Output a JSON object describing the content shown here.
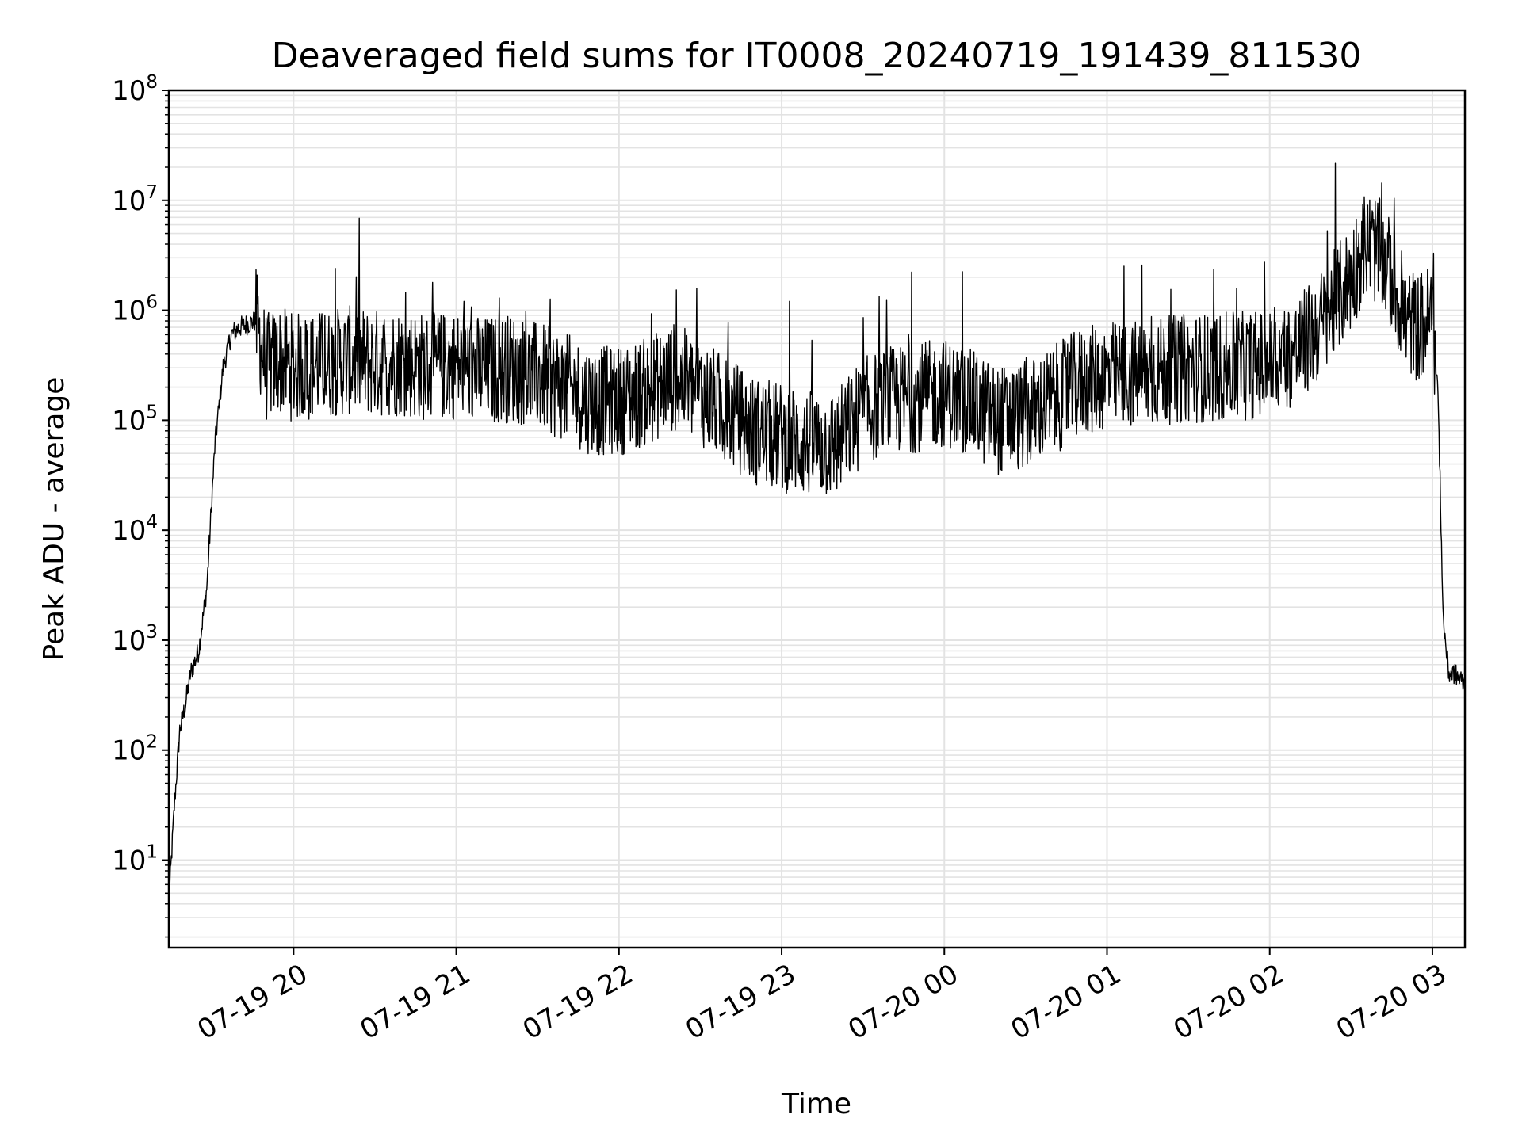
{
  "chart_data": {
    "type": "line",
    "title": "Deaveraged field sums for IT0008_20240719_191439_811530",
    "xlabel": "Time",
    "ylabel": "Peak ADU - average",
    "yscale": "log",
    "ylim": [
      1.6,
      100000000
    ],
    "y_ticks": [
      {
        "base": "10",
        "exp": "1",
        "value": 10
      },
      {
        "base": "10",
        "exp": "2",
        "value": 100
      },
      {
        "base": "10",
        "exp": "3",
        "value": 1000
      },
      {
        "base": "10",
        "exp": "4",
        "value": 10000
      },
      {
        "base": "10",
        "exp": "5",
        "value": 100000
      },
      {
        "base": "10",
        "exp": "6",
        "value": 1000000
      },
      {
        "base": "10",
        "exp": "7",
        "value": 10000000
      },
      {
        "base": "10",
        "exp": "8",
        "value": 100000000
      }
    ],
    "xlim": [
      "2024-07-19 19:14",
      "2024-07-20 03:12"
    ],
    "x_ticks": [
      {
        "label": "07-19 20",
        "time": "2024-07-19 20:00"
      },
      {
        "label": "07-19 21",
        "time": "2024-07-19 21:00"
      },
      {
        "label": "07-19 22",
        "time": "2024-07-19 22:00"
      },
      {
        "label": "07-19 23",
        "time": "2024-07-19 23:00"
      },
      {
        "label": "07-20 00",
        "time": "2024-07-20 00:00"
      },
      {
        "label": "07-20 01",
        "time": "2024-07-20 01:00"
      },
      {
        "label": "07-20 02",
        "time": "2024-07-20 02:00"
      },
      {
        "label": "07-20 03",
        "time": "2024-07-20 03:00"
      }
    ],
    "grid": true,
    "line_color": "#000000",
    "grid_color": "#e3e3e3",
    "series": [
      {
        "x": [
          "2024-07-19 19:14",
          "2024-07-19 19:16",
          "2024-07-19 19:18",
          "2024-07-19 19:20",
          "2024-07-19 19:22",
          "2024-07-19 19:25",
          "2024-07-19 19:28",
          "2024-07-19 19:31",
          "2024-07-19 19:34",
          "2024-07-19 19:37",
          "2024-07-19 19:40",
          "2024-07-19 19:43",
          "2024-07-19 19:46",
          "2024-07-19 19:50",
          "2024-07-19 19:55",
          "2024-07-19 20:00",
          "2024-07-19 20:10",
          "2024-07-19 20:20",
          "2024-07-19 20:30",
          "2024-07-19 20:40",
          "2024-07-19 20:50",
          "2024-07-19 21:00",
          "2024-07-19 21:10",
          "2024-07-19 21:20",
          "2024-07-19 21:30",
          "2024-07-19 21:40",
          "2024-07-19 21:50",
          "2024-07-19 22:00",
          "2024-07-19 22:10",
          "2024-07-19 22:20",
          "2024-07-19 22:30",
          "2024-07-19 22:40",
          "2024-07-19 22:50",
          "2024-07-19 23:00",
          "2024-07-19 23:10",
          "2024-07-19 23:20",
          "2024-07-19 23:30",
          "2024-07-19 23:40",
          "2024-07-19 23:50",
          "2024-07-20 00:00",
          "2024-07-20 00:10",
          "2024-07-20 00:20",
          "2024-07-20 00:30",
          "2024-07-20 00:40",
          "2024-07-20 00:50",
          "2024-07-20 01:00",
          "2024-07-20 01:10",
          "2024-07-20 01:20",
          "2024-07-20 01:30",
          "2024-07-20 01:40",
          "2024-07-20 01:50",
          "2024-07-20 02:00",
          "2024-07-20 02:10",
          "2024-07-20 02:20",
          "2024-07-20 02:30",
          "2024-07-20 02:35",
          "2024-07-20 02:40",
          "2024-07-20 02:45",
          "2024-07-20 02:50",
          "2024-07-20 02:55",
          "2024-07-20 03:00",
          "2024-07-20 03:02",
          "2024-07-20 03:04",
          "2024-07-20 03:06",
          "2024-07-20 03:08",
          "2024-07-20 03:12"
        ],
        "y": [
          4,
          30,
          150,
          250,
          500,
          800,
          3000,
          60000,
          300000,
          600000,
          700000,
          750000,
          800000,
          300000,
          350000,
          300000,
          320000,
          350000,
          330000,
          340000,
          300000,
          320000,
          280000,
          300000,
          250000,
          200000,
          150000,
          150000,
          180000,
          250000,
          180000,
          120000,
          80000,
          70000,
          60000,
          60000,
          120000,
          150000,
          160000,
          180000,
          140000,
          100000,
          110000,
          150000,
          220000,
          250000,
          260000,
          280000,
          300000,
          300000,
          310000,
          330000,
          420000,
          800000,
          2000000,
          4000000,
          3500000,
          2000000,
          800000,
          700000,
          900000,
          200000,
          1500,
          500,
          500,
          400
        ],
        "noise": "dense high-frequency fluctuations roughly one decade around the trend"
      }
    ]
  }
}
